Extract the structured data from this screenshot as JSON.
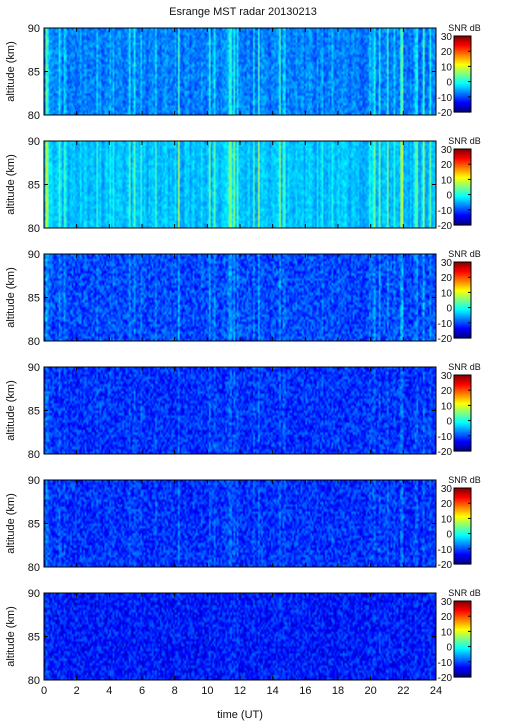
{
  "title": "Esrange MST radar 20130213",
  "xlabel": "time (UT)",
  "ylabel": "altitude (km)",
  "colorbar_label": "SNR dB",
  "colors": {
    "background": "#ffffff",
    "axis": "#000000",
    "colormap": [
      "#000080",
      "#0000ff",
      "#00ffff",
      "#ffff00",
      "#ff0000",
      "#800000"
    ]
  },
  "chart_data": {
    "type": "heatmap",
    "panel_count": 6,
    "x": {
      "label": "time (UT)",
      "range": [
        0,
        24
      ],
      "ticks": [
        0,
        2,
        4,
        6,
        8,
        10,
        12,
        14,
        16,
        18,
        20,
        22,
        24
      ]
    },
    "y": {
      "label": "altitude (km)",
      "range": [
        80,
        90
      ],
      "ticks": [
        80,
        85,
        90
      ],
      "tick_labels": [
        "80",
        "85",
        "90"
      ]
    },
    "colorbar": {
      "label": "SNR dB",
      "range": [
        -20,
        30
      ],
      "ticks": [
        -20,
        -10,
        0,
        10,
        20,
        30
      ],
      "tick_labels": [
        "-20",
        "-10",
        "0",
        "10",
        "20",
        "30"
      ],
      "colormap": "jet"
    },
    "panels": [
      {
        "base_snr": -9,
        "stripe_amp": 6,
        "noise_amp": 3
      },
      {
        "base_snr": -6,
        "stripe_amp": 7,
        "noise_amp": 2
      },
      {
        "base_snr": -11,
        "stripe_amp": 3,
        "noise_amp": 4
      },
      {
        "base_snr": -12,
        "stripe_amp": 2,
        "noise_amp": 4
      },
      {
        "base_snr": -12,
        "stripe_amp": 2,
        "noise_amp": 4
      },
      {
        "base_snr": -13,
        "stripe_amp": 1,
        "noise_amp": 4
      }
    ]
  }
}
